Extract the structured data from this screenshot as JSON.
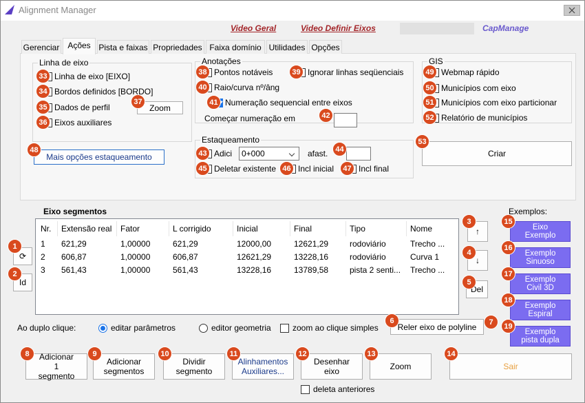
{
  "window": {
    "title": "Alignment Manager"
  },
  "links": [
    "Video Geral",
    "Video Definir Eixos",
    "CapManage"
  ],
  "tabs": {
    "items": [
      "Gerenciar",
      "Ações",
      "Pista e faixas",
      "Propriedades",
      "Faixa domínio",
      "Utilidades",
      "Opções"
    ],
    "active": 1
  },
  "linha_de_eixo": {
    "title": "Linha de eixo",
    "items": [
      {
        "badge": 33,
        "label": "Linha de eixo [EIXO]"
      },
      {
        "badge": 34,
        "label": "Bordos definidos [BORDO]"
      },
      {
        "badge": 35,
        "label": "Dados de perfil"
      },
      {
        "badge": 36,
        "label": "Eixos auxiliares"
      }
    ],
    "zoom": {
      "badge": 37,
      "label": "Zoom"
    }
  },
  "anotacoes": {
    "title": "Anotações",
    "items": [
      {
        "badge": 38,
        "label": "Pontos notáveis"
      },
      {
        "badge": 39,
        "label": "Ignorar linhas seqüenciais"
      },
      {
        "badge": 40,
        "label": "Raio/curva nº/âng"
      },
      {
        "badge": 41,
        "label": "Numeração sequencial entre eixos",
        "checked": true
      }
    ],
    "start": {
      "badge": 42,
      "label": "Começar numeração em"
    }
  },
  "gis": {
    "title": "GIS",
    "items": [
      {
        "badge": 49,
        "label": "Webmap rápido"
      },
      {
        "badge": 50,
        "label": "Municípios com eixo"
      },
      {
        "badge": 51,
        "label": "Municípios com eixo particionar"
      },
      {
        "badge": 52,
        "label": "Relatório de municípios"
      }
    ],
    "create": {
      "badge": 53,
      "label": "Criar"
    }
  },
  "estaqueamento": {
    "title": "Estaqueamento",
    "add": {
      "badge": 43,
      "label": "Adici",
      "select": "0+000"
    },
    "offset": {
      "badge": 44,
      "label": "afast."
    },
    "items": [
      {
        "badge": 45,
        "label": "Deletar existente"
      },
      {
        "badge": 46,
        "label": "Incl inicial"
      },
      {
        "badge": 47,
        "label": "Incl final"
      }
    ]
  },
  "more_options": {
    "badge": 48,
    "label": "Mais opções estaqueamento"
  },
  "segments": {
    "title": "Eixo segmentos",
    "columns": [
      "Nr.",
      "Extensão real",
      "Fator",
      "L corrigido",
      "Inicial",
      "Final",
      "Tipo",
      "Nome"
    ],
    "rows": [
      [
        "1",
        "621,29",
        "1,00000",
        "621,29",
        "12000,00",
        "12621,29",
        "rodoviário",
        "Trecho ..."
      ],
      [
        "2",
        "606,87",
        "1,00000",
        "606,87",
        "12621,29",
        "13228,16",
        "rodoviário",
        "Curva 1"
      ],
      [
        "3",
        "561,43",
        "1,00000",
        "561,43",
        "13228,16",
        "13789,58",
        "pista 2 senti...",
        "Trecho ..."
      ]
    ]
  },
  "side_buttons": [
    {
      "badge": 1,
      "label": "⟳"
    },
    {
      "badge": 2,
      "label": "Id"
    },
    {
      "badge": 3,
      "label": "↑"
    },
    {
      "badge": 4,
      "label": "↓"
    },
    {
      "badge": 5,
      "label": "Del"
    }
  ],
  "examples": {
    "title": "Exemplos:",
    "items": [
      {
        "badge": 15,
        "label": "Eixo Exemplo"
      },
      {
        "badge": 16,
        "label": "Exemplo Sinuoso"
      },
      {
        "badge": 17,
        "label": "Exemplo Civil 3D"
      },
      {
        "badge": 18,
        "label": "Exemplo Espiral"
      },
      {
        "badge": 19,
        "label": "Exemplo pista dupla"
      }
    ]
  },
  "double_click": {
    "label": "Ao duplo clique:",
    "options": [
      {
        "label": "editar parâmetros",
        "checked": true
      },
      {
        "label": "editor geometria"
      }
    ],
    "zoom_click": {
      "label": "zoom ao clique simples"
    }
  },
  "reload": {
    "badges": [
      6,
      7
    ],
    "label": "Reler eixo de polyline"
  },
  "actions": [
    {
      "badge": 8,
      "label": "Adicionar 1 segmento"
    },
    {
      "badge": 9,
      "label": "Adicionar segmentos"
    },
    {
      "badge": 10,
      "label": "Dividir segmento"
    },
    {
      "badge": 11,
      "label": "Alinhamentos Auxiliares..."
    },
    {
      "badge": 12,
      "label": "Desenhar eixo"
    },
    {
      "badge": 13,
      "label": "Zoom"
    },
    {
      "badge": 14,
      "label": "Sair"
    }
  ],
  "delete_previous": {
    "label": "deleta anteriores"
  }
}
